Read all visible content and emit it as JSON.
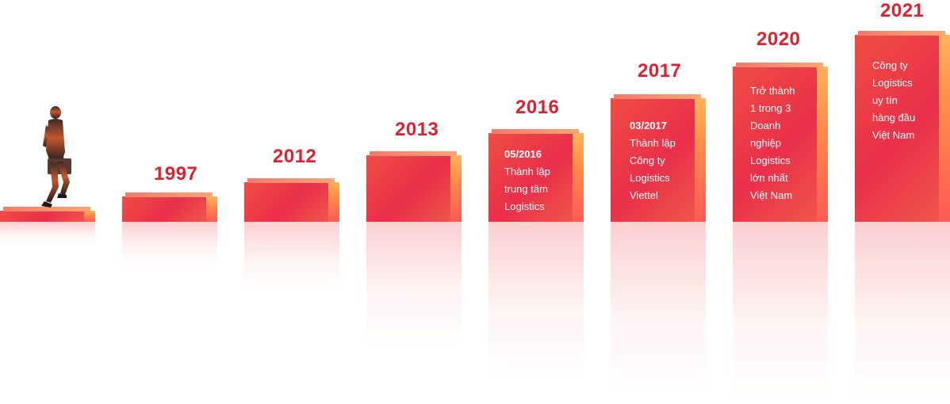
{
  "timeline": [
    {
      "year": "1997",
      "date": "",
      "lines": []
    },
    {
      "year": "2012",
      "date": "",
      "lines": []
    },
    {
      "year": "2013",
      "date": "",
      "lines": []
    },
    {
      "year": "2016",
      "date": "05/2016",
      "lines": [
        "Thành lập",
        "trung tâm",
        "Logistics"
      ]
    },
    {
      "year": "2017",
      "date": "03/2017",
      "lines": [
        "Thành lập",
        "Công ty",
        "Logistics",
        "Viettel"
      ]
    },
    {
      "year": "2020",
      "date": "",
      "lines": [
        "Trở thành",
        "1 trong 3",
        "Doanh",
        "nghiệp",
        "Logistics",
        "lớn nhất",
        "Việt Nam"
      ]
    },
    {
      "year": "2021",
      "date": "",
      "lines": [
        "Công ty",
        "Logistics",
        "uy tín",
        "hàng đầu",
        "Việt Nam"
      ]
    }
  ],
  "colors": {
    "accent": "#e0202f",
    "step": "#ea2f4a",
    "side": "#ff9a50"
  },
  "icons": {
    "walker": "businessman-walking-icon"
  }
}
